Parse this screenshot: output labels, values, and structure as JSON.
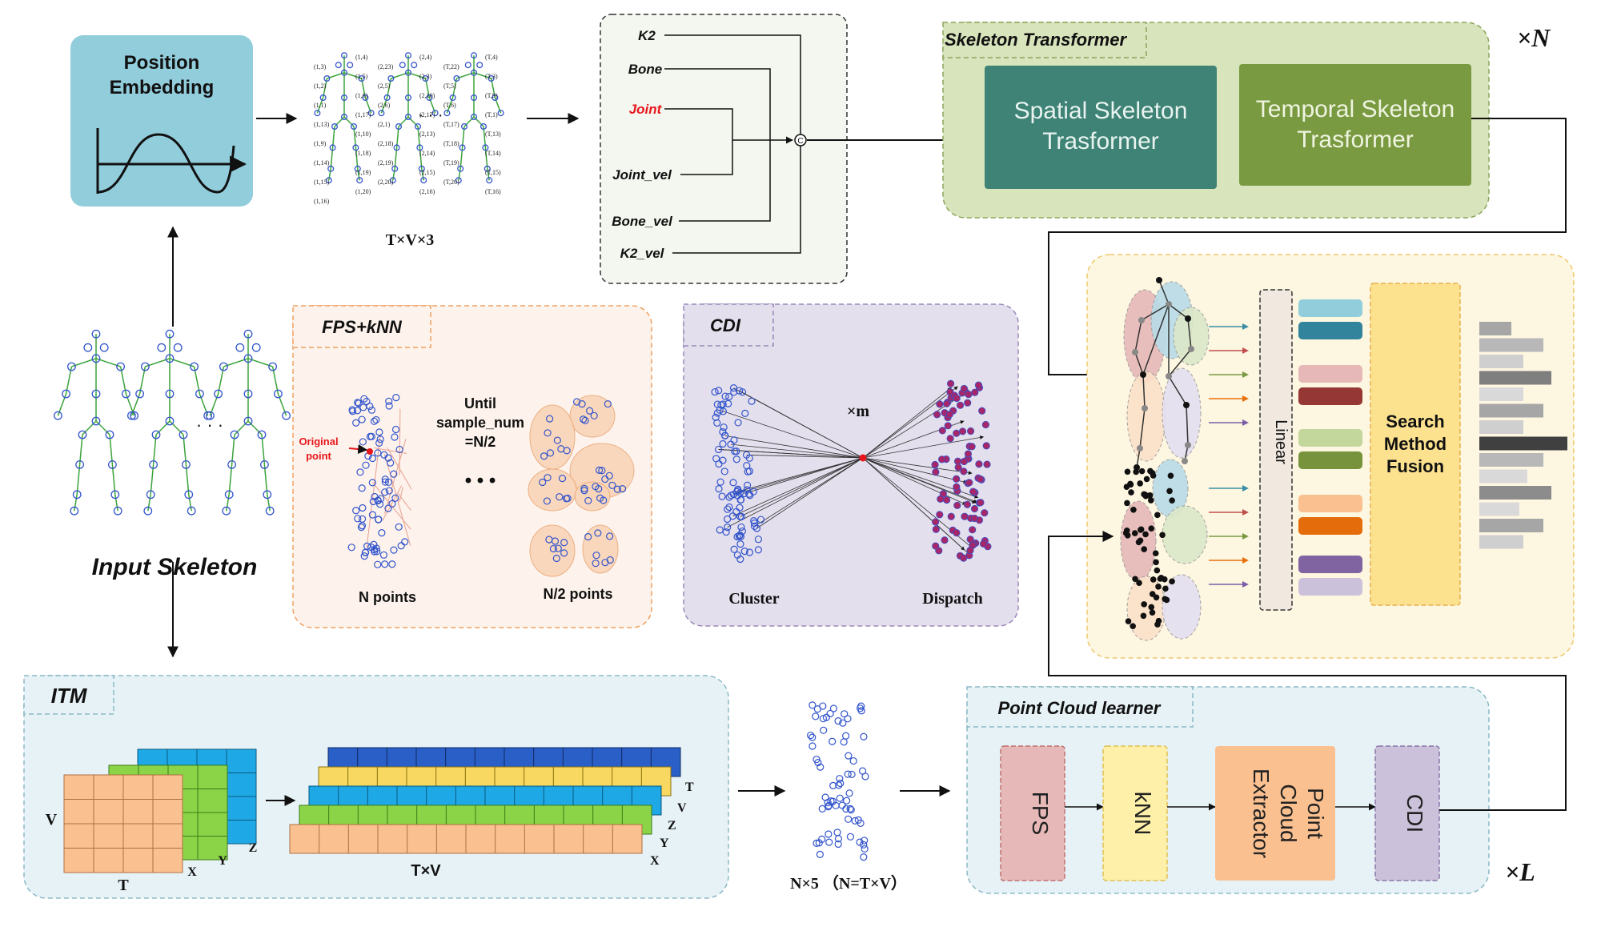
{
  "position_embedding": {
    "title_line1": "Position",
    "title_line2": "Embedding"
  },
  "input_skeleton": {
    "label": "Input Skeleton",
    "ellipsis": "· · ·"
  },
  "skeleton_sequence": {
    "dim_label": "T×V×3",
    "ellipsis": "· · ·",
    "joint_labels": [
      "(1,4)",
      "(1,3)",
      "(1,5)",
      "(1,2)",
      "(1,6)",
      "(1,1)",
      "(1,17)",
      "(1,13)",
      "(1,10)",
      "(1,9)",
      "(1,18)",
      "(1,14)",
      "(1,19)",
      "(1,15)",
      "(1,20)",
      "(1,16)",
      "(2,4)",
      "(2,23)",
      "(2,3)",
      "(2,5)",
      "(2,10)",
      "(2,6)",
      "(2,17)",
      "(2,1)",
      "(2,13)",
      "(2,18)",
      "(2,14)",
      "(2,19)",
      "(2,15)",
      "(2,20)",
      "(2,16)",
      "(T,4)",
      "(T,22)",
      "(T,3)",
      "(T,5)",
      "(T,9)",
      "(T,6)",
      "(T,1)",
      "(T,17)",
      "(T,13)",
      "(T,18)",
      "(T,14)",
      "(T,19)",
      "(T,15)",
      "(T,20)",
      "(T,16)"
    ]
  },
  "feature_concat": {
    "inputs": [
      "K2",
      "Bone",
      "Joint",
      "Joint_vel",
      "Bone_vel",
      "K2_vel"
    ],
    "highlight_color": "#e8161c",
    "concat_symbol": "C"
  },
  "skeleton_transformer": {
    "title": "Skeleton Transformer",
    "spatial_line1": "Spatial Skeleton",
    "spatial_line2": "Trasformer",
    "temporal_line1": "Temporal Skeleton",
    "temporal_line2": "Trasformer",
    "repeat": "×N",
    "spatial_color": "#3e8375",
    "temporal_color": "#7a9a41"
  },
  "fps_knn": {
    "title": "FPS+kNN",
    "original_point_line1": "Original",
    "original_point_line2": "point",
    "until_line1": "Until",
    "until_line2": "sample_num",
    "until_line3": "=N/2",
    "dots": "• • •",
    "n_points": "N points",
    "half_points": "N/2 points"
  },
  "cdi": {
    "title": "CDI",
    "times_m": "×m",
    "cluster": "Cluster",
    "dispatch": "Dispatch"
  },
  "fusion": {
    "linear": "Linear",
    "search_line1": "Search",
    "search_line2": "Method",
    "search_line3": "Fusion",
    "arrow_colors": [
      "#3a8fa6",
      "#c0504d",
      "#7a9a41",
      "#e8700a",
      "#7b5ea7",
      "#3a8fa6",
      "#c0504d",
      "#7a9a41",
      "#e8700a",
      "#7b5ea7"
    ],
    "token_colors": [
      "#92cddc",
      "#31849b",
      "#e6b9b8",
      "#953735",
      "#c3d69b",
      "#77933c",
      "#fac090",
      "#e46c0a",
      "#8064a2",
      "#ccc1da"
    ],
    "bar_widths": [
      40,
      80,
      55,
      90,
      55,
      80,
      55,
      110,
      80,
      60,
      90,
      50,
      80,
      55
    ]
  },
  "itm": {
    "title": "ITM",
    "v": "V",
    "t": "T",
    "x": "X",
    "y": "Y",
    "z": "Z",
    "tv": "T×V",
    "stack_labels": [
      "T",
      "V",
      "Z",
      "Y",
      "X"
    ]
  },
  "point_cloud_output": {
    "label": "N×5  （N=T×V）"
  },
  "point_cloud_learner": {
    "title": "Point Cloud learner",
    "fps": "FPS",
    "knn": "kNN",
    "extractor_line1": "Point",
    "extractor_line2": "Cloud",
    "extractor_line3": "Extractor",
    "cdi": "CDI",
    "repeat": "×L"
  }
}
